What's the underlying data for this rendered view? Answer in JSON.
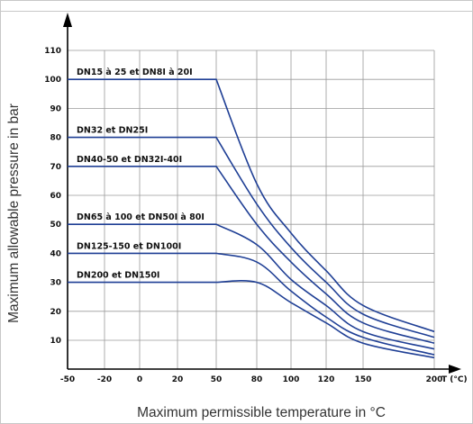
{
  "chart_data": {
    "type": "line",
    "title": "",
    "xlabel": "Maximum permissible temperature in °C",
    "ylabel": "Maximum allowable pressure in bar",
    "x_axis_unit_label": "T (°C)",
    "x_ticks": [
      -50,
      -20,
      0,
      20,
      50,
      80,
      100,
      120,
      150,
      200
    ],
    "y_ticks": [
      10,
      20,
      30,
      40,
      50,
      60,
      70,
      80,
      90,
      100,
      110
    ],
    "ylim": [
      0,
      110
    ],
    "grid": true,
    "line_color": "#1f3f95",
    "series": [
      {
        "name": "DN15 à 25 et DN8I à 20I",
        "points": [
          [
            -50,
            100
          ],
          [
            50,
            100
          ],
          [
            80,
            64
          ],
          [
            100,
            47
          ],
          [
            120,
            34
          ],
          [
            150,
            22
          ],
          [
            200,
            13
          ]
        ]
      },
      {
        "name": "DN32 et DN25I",
        "points": [
          [
            -50,
            80
          ],
          [
            50,
            80
          ],
          [
            80,
            57
          ],
          [
            100,
            42
          ],
          [
            120,
            30
          ],
          [
            150,
            19
          ],
          [
            200,
            11
          ]
        ]
      },
      {
        "name": "DN40-50 et DN32I-40I",
        "points": [
          [
            -50,
            70
          ],
          [
            50,
            70
          ],
          [
            80,
            50
          ],
          [
            100,
            37
          ],
          [
            120,
            26
          ],
          [
            150,
            16
          ],
          [
            200,
            9
          ]
        ]
      },
      {
        "name": "DN65 à 100 et DN50I à 80I",
        "points": [
          [
            -50,
            50
          ],
          [
            50,
            50
          ],
          [
            80,
            43
          ],
          [
            100,
            31
          ],
          [
            120,
            22
          ],
          [
            150,
            13
          ],
          [
            200,
            7
          ]
        ]
      },
      {
        "name": "DN125-150 et DN100I",
        "points": [
          [
            -50,
            40
          ],
          [
            50,
            40
          ],
          [
            80,
            37
          ],
          [
            100,
            27
          ],
          [
            120,
            18
          ],
          [
            150,
            11
          ],
          [
            200,
            5
          ]
        ]
      },
      {
        "name": "DN200 et DN150I",
        "points": [
          [
            -50,
            30
          ],
          [
            50,
            30
          ],
          [
            80,
            30
          ],
          [
            100,
            23
          ],
          [
            120,
            16
          ],
          [
            150,
            9
          ],
          [
            200,
            4
          ]
        ]
      }
    ]
  }
}
